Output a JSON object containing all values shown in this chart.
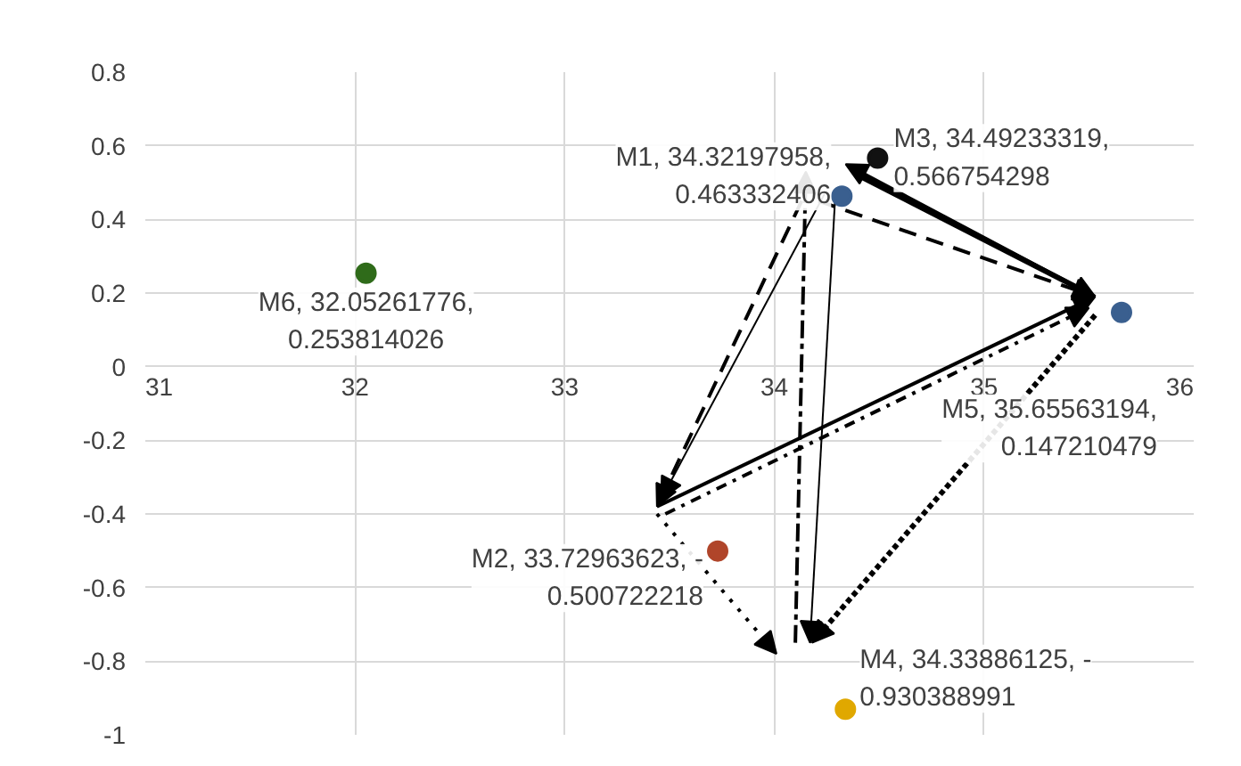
{
  "chart_data": {
    "type": "scatter",
    "x": [
      34.32197958,
      33.72963623,
      34.49233319,
      34.33886125,
      35.65563194,
      32.05261776
    ],
    "values": [
      0.463332406,
      -0.500722218,
      0.566754298,
      -0.930388991,
      0.147210479,
      0.253814026
    ],
    "colors": [
      "#3a5f8f",
      "#b0452a",
      "#111111",
      "#e0a800",
      "#3a5f8f",
      "#2f6b1a"
    ],
    "value_labels": [
      "M1, 34.32197958,\n0.463332406",
      "M2, 33.72963623, -\n0.500722218",
      "M3, 34.49233319,\n0.566754298",
      "M4, 34.33886125, -\n0.930388991",
      "M5, 35.65563194,\n0.147210479",
      "M6, 32.05261776,\n0.253814026"
    ],
    "xlim": [
      31,
      36
    ],
    "xticks": [
      31,
      32,
      33,
      34,
      35,
      36
    ],
    "ylim": [
      -1,
      0.8
    ],
    "yticks": [
      -1,
      -0.8,
      -0.6,
      -0.4,
      -0.2,
      0,
      0.2,
      0.4,
      0.6,
      0.8
    ],
    "grid": true,
    "marker": "circle"
  }
}
